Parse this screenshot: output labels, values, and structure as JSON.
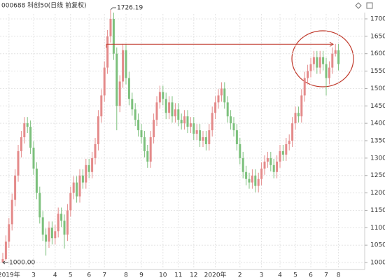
{
  "chart_data": {
    "type": "candlestick",
    "title": "000688 科创50(日线 前复权)",
    "categories": [
      null,
      null,
      "2019年",
      null,
      null,
      null,
      null,
      null,
      null,
      null,
      "3",
      null,
      null,
      null,
      null,
      null,
      null,
      "4",
      null,
      null,
      null,
      null,
      "5",
      null,
      null,
      null,
      null,
      null,
      "6",
      null,
      null,
      null,
      null,
      "7",
      null,
      null,
      null,
      null,
      null,
      null,
      "8",
      null,
      null,
      null,
      null,
      "9",
      null,
      null,
      null,
      null,
      null,
      null,
      "10",
      null,
      null,
      null,
      null,
      "11",
      null,
      null,
      null,
      null,
      "12",
      null,
      null,
      null,
      null,
      null,
      null,
      "2020年",
      null,
      null,
      null,
      null,
      null,
      null,
      null,
      "2",
      null,
      null,
      null,
      null,
      null,
      null,
      "3",
      null,
      null,
      null,
      null,
      null,
      "4",
      null,
      null,
      null,
      null,
      "5",
      null,
      null,
      null,
      null,
      "6",
      null,
      null,
      null,
      null,
      "7",
      null,
      null,
      null,
      "8"
    ],
    "open": [
      1000,
      1010,
      1060,
      1110,
      1180,
      1250,
      1320,
      1360,
      1400,
      1390,
      1330,
      1270,
      1200,
      1130,
      1080,
      1060,
      1100,
      1070,
      1090,
      1140,
      1120,
      1080,
      1150,
      1200,
      1230,
      1190,
      1250,
      1230,
      1280,
      1260,
      1300,
      1340,
      1420,
      1480,
      1560,
      1650,
      1700,
      1600,
      1450,
      1520,
      1610,
      1530,
      1470,
      1440,
      1410,
      1380,
      1360,
      1320,
      1290,
      1360,
      1410,
      1460,
      1490,
      1470,
      1430,
      1460,
      1420,
      1440,
      1410,
      1400,
      1420,
      1390,
      1400,
      1370,
      1380,
      1350,
      1360,
      1340,
      1380,
      1430,
      1460,
      1480,
      1500,
      1460,
      1420,
      1400,
      1380,
      1340,
      1300,
      1260,
      1240,
      1230,
      1250,
      1220,
      1240,
      1270,
      1290,
      1300,
      1280,
      1260,
      1290,
      1320,
      1310,
      1340,
      1350,
      1400,
      1430,
      1420,
      1480,
      1530,
      1550,
      1570,
      1590,
      1560,
      1590,
      1570,
      1530,
      1560,
      1600,
      1610
    ],
    "high": [
      1028,
      1078,
      1128,
      1198,
      1268,
      1338,
      1378,
      1418,
      1418,
      1408,
      1348,
      1288,
      1218,
      1148,
      1098,
      1118,
      1118,
      1108,
      1158,
      1158,
      1138,
      1168,
      1218,
      1248,
      1248,
      1268,
      1268,
      1298,
      1298,
      1318,
      1358,
      1438,
      1498,
      1578,
      1668,
      1726.19,
      1718,
      1618,
      1538,
      1628,
      1628,
      1548,
      1488,
      1458,
      1428,
      1398,
      1378,
      1338,
      1378,
      1428,
      1478,
      1508,
      1508,
      1488,
      1478,
      1478,
      1458,
      1458,
      1428,
      1438,
      1438,
      1418,
      1418,
      1398,
      1398,
      1378,
      1378,
      1398,
      1448,
      1478,
      1498,
      1518,
      1518,
      1478,
      1438,
      1418,
      1398,
      1358,
      1318,
      1278,
      1258,
      1268,
      1268,
      1258,
      1288,
      1308,
      1318,
      1318,
      1298,
      1308,
      1338,
      1338,
      1358,
      1368,
      1418,
      1448,
      1448,
      1498,
      1548,
      1568,
      1588,
      1608,
      1608,
      1608,
      1608,
      1588,
      1578,
      1618,
      1628,
      1628
    ],
    "low": [
      1000,
      1005,
      1042,
      1092,
      1162,
      1232,
      1302,
      1342,
      1372,
      1312,
      1252,
      1182,
      1112,
      1062,
      1020,
      1042,
      1052,
      1052,
      1072,
      1102,
      1040,
      1062,
      1132,
      1182,
      1172,
      1172,
      1212,
      1212,
      1242,
      1242,
      1282,
      1322,
      1402,
      1462,
      1542,
      1632,
      1582,
      1380,
      1432,
      1502,
      1512,
      1452,
      1422,
      1392,
      1362,
      1342,
      1302,
      1272,
      1272,
      1342,
      1392,
      1442,
      1452,
      1412,
      1412,
      1402,
      1402,
      1392,
      1382,
      1382,
      1372,
      1372,
      1352,
      1352,
      1332,
      1332,
      1322,
      1322,
      1362,
      1412,
      1442,
      1462,
      1442,
      1402,
      1382,
      1362,
      1322,
      1282,
      1242,
      1222,
      1212,
      1212,
      1202,
      1202,
      1222,
      1252,
      1272,
      1262,
      1242,
      1242,
      1272,
      1292,
      1292,
      1322,
      1332,
      1382,
      1402,
      1402,
      1462,
      1512,
      1532,
      1552,
      1542,
      1542,
      1552,
      1480,
      1512,
      1542,
      1592,
      1552
    ],
    "close": [
      1010,
      1060,
      1110,
      1180,
      1250,
      1320,
      1360,
      1400,
      1390,
      1330,
      1270,
      1200,
      1130,
      1080,
      1060,
      1100,
      1070,
      1090,
      1140,
      1120,
      1080,
      1150,
      1200,
      1230,
      1190,
      1250,
      1230,
      1280,
      1260,
      1300,
      1340,
      1420,
      1480,
      1560,
      1650,
      1700,
      1600,
      1450,
      1520,
      1610,
      1530,
      1470,
      1440,
      1410,
      1380,
      1360,
      1320,
      1290,
      1360,
      1410,
      1460,
      1490,
      1470,
      1430,
      1460,
      1420,
      1440,
      1410,
      1400,
      1420,
      1390,
      1400,
      1370,
      1380,
      1350,
      1360,
      1340,
      1380,
      1430,
      1460,
      1480,
      1500,
      1460,
      1420,
      1400,
      1380,
      1340,
      1300,
      1260,
      1240,
      1230,
      1250,
      1220,
      1240,
      1270,
      1290,
      1300,
      1280,
      1260,
      1290,
      1320,
      1310,
      1340,
      1350,
      1400,
      1430,
      1420,
      1480,
      1530,
      1550,
      1570,
      1590,
      1560,
      1590,
      1570,
      1530,
      1560,
      1600,
      1610,
      1570
    ],
    "up_color": "#e48a8a",
    "down_color": "#7cc07c",
    "ylim": [
      980,
      1714
    ],
    "yticks": [
      1000,
      1050,
      1100,
      1150,
      1200,
      1250,
      1300,
      1350,
      1400,
      1450,
      1500,
      1550,
      1600,
      1650,
      1700
    ],
    "grid": true,
    "reference_line": 1627,
    "reference_color": "#c0392b",
    "max_label": "1726.19",
    "min_label": "1000.00"
  }
}
